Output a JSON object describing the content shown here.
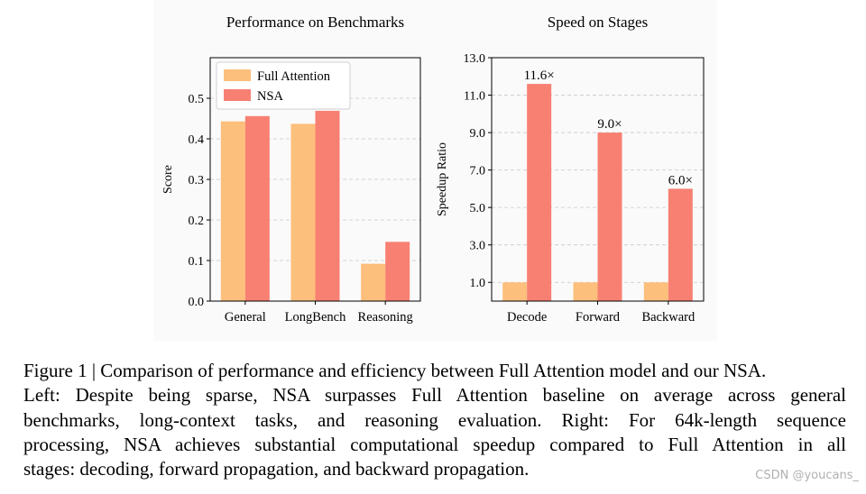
{
  "colors": {
    "full_attention": "#fdbf7c",
    "nsa": "#f88072",
    "grid": "#c8c8c8"
  },
  "chart_data": [
    {
      "type": "bar",
      "title": "Performance on Benchmarks",
      "xlabel": "",
      "ylabel": "Score",
      "categories": [
        "General",
        "LongBench",
        "Reasoning"
      ],
      "series": [
        {
          "name": "Full Attention",
          "values": [
            0.443,
            0.437,
            0.092
          ]
        },
        {
          "name": "NSA",
          "values": [
            0.456,
            0.469,
            0.146
          ]
        }
      ],
      "ylim": [
        0,
        0.6
      ],
      "yticks": [
        0.0,
        0.1,
        0.2,
        0.3,
        0.4,
        0.5
      ],
      "ytick_labels": [
        "0.0",
        "0.1",
        "0.2",
        "0.3",
        "0.4",
        "0.5"
      ],
      "grid": "horizontal dashed",
      "legend": "top-left"
    },
    {
      "type": "bar",
      "title": "Speed on Stages",
      "xlabel": "",
      "ylabel": "Speedup Ratio",
      "categories": [
        "Decode",
        "Forward",
        "Backward"
      ],
      "series": [
        {
          "values": [
            1.0,
            1.0,
            1.0
          ]
        },
        {
          "values": [
            11.6,
            9.0,
            6.0
          ]
        }
      ],
      "data_labels": [
        "11.6×",
        "9.0×",
        "6.0×"
      ],
      "ylim": [
        0,
        13.0
      ],
      "yticks": [
        1.0,
        3.0,
        5.0,
        7.0,
        9.0,
        11.0,
        13.0
      ],
      "ytick_labels": [
        "1.0",
        "3.0",
        "5.0",
        "7.0",
        "9.0",
        "11.0",
        "13.0"
      ],
      "grid": "horizontal dashed"
    }
  ],
  "caption": {
    "lines": [
      "Figure 1 | Comparison of performance and efficiency between Full Attention model and our NSA.",
      "Left: Despite being sparse, NSA surpasses Full Attention baseline on average across general",
      "benchmarks, long-context tasks, and reasoning evaluation.  Right: For 64k-length sequence",
      "processing, NSA achieves substantial computational speedup compared to Full Attention in all",
      "stages: decoding, forward propagation, and backward propagation."
    ]
  },
  "watermark": "CSDN @youcans_"
}
